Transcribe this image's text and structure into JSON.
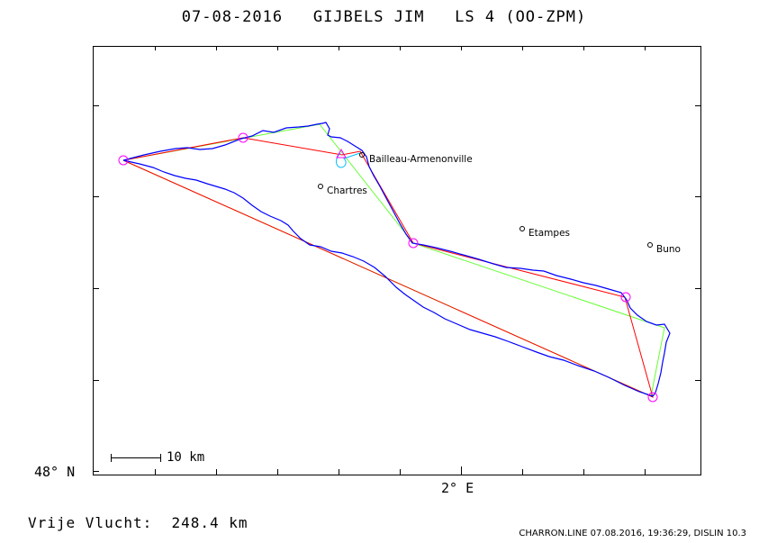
{
  "header": {
    "date": "07-08-2016",
    "pilot": "GIJBELS JIM",
    "glider": "LS 4 (OO-ZPM)"
  },
  "axes": {
    "latitude_label": "48° N",
    "longitude_label": "2° E"
  },
  "scale_bar": {
    "label": "10 km"
  },
  "flight": {
    "distance_caption": "Vrije Vlucht:",
    "distance_value": "248.4 km"
  },
  "footer": {
    "info": "CHARRON.LINE 07.08.2016, 19:36:29, DISLIN 10.3"
  },
  "places": [
    {
      "name": "Bailleau-Armenonville"
    },
    {
      "name": "Chartres"
    },
    {
      "name": "Etampes"
    },
    {
      "name": "Buno"
    }
  ],
  "colors": {
    "track": "#0000ff",
    "task_line": "#ff0000",
    "optimized_line": "#66ff33",
    "turnpoint_circle": "#ff00ff",
    "climb_track": "#00bfff",
    "frame": "#000000"
  },
  "markers": {
    "start_marker": "triangle",
    "turnpoint_marker": "circle"
  }
}
